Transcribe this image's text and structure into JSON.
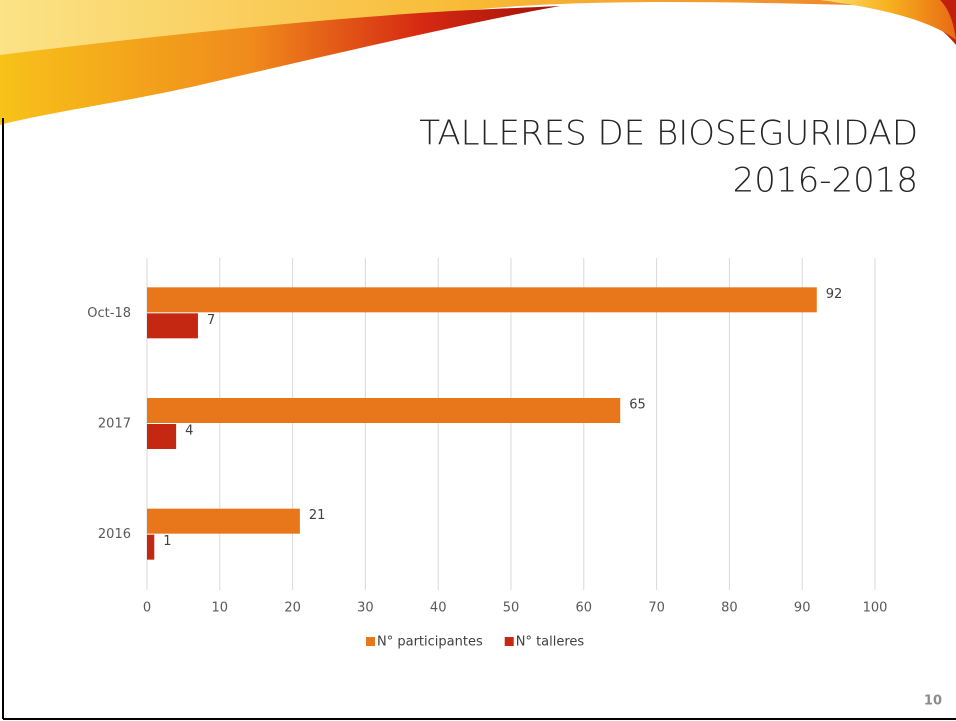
{
  "chart_data": {
    "type": "bar",
    "orientation": "horizontal",
    "title": "TALLERES DE BIOSEGURIDAD",
    "subtitle": "2016-2018",
    "categories": [
      "Oct-18",
      "2017",
      "2016"
    ],
    "series": [
      {
        "name": "N° participantes",
        "color": "#e8761a",
        "values": [
          92,
          65,
          21
        ]
      },
      {
        "name": "N° talleres",
        "color": "#c42712",
        "values": [
          7,
          4,
          1
        ]
      }
    ],
    "xlim": [
      0,
      100
    ],
    "xticks": [
      0,
      10,
      20,
      30,
      40,
      50,
      60,
      70,
      80,
      90,
      100
    ],
    "grid": true,
    "legend": "bottom"
  },
  "page_number": "10"
}
